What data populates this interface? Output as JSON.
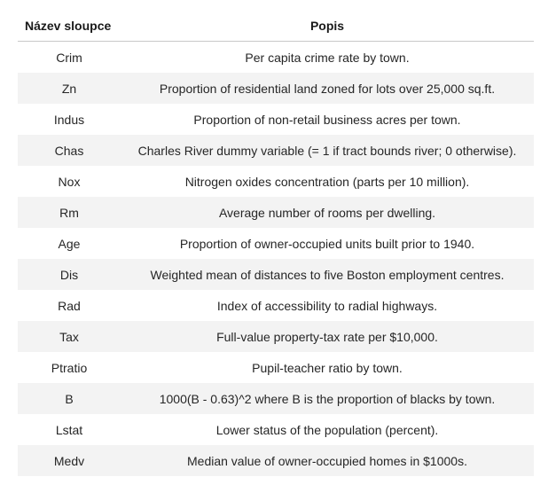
{
  "table": {
    "headers": {
      "name": "Název sloupce",
      "description": "Popis"
    },
    "rows": [
      {
        "name": "Crim",
        "description": "Per capita crime rate by town."
      },
      {
        "name": "Zn",
        "description": "Proportion of residential land zoned for lots over 25,000 sq.ft."
      },
      {
        "name": "Indus",
        "description": "Proportion of non-retail business acres per town."
      },
      {
        "name": "Chas",
        "description": "Charles River dummy variable (= 1 if tract bounds river; 0 otherwise)."
      },
      {
        "name": "Nox",
        "description": "Nitrogen oxides concentration (parts per 10 million)."
      },
      {
        "name": "Rm",
        "description": "Average number of rooms per dwelling."
      },
      {
        "name": "Age",
        "description": "Proportion of owner-occupied units built prior to 1940."
      },
      {
        "name": "Dis",
        "description": "Weighted mean of distances to five Boston employment centres."
      },
      {
        "name": "Rad",
        "description": "Index of accessibility to radial highways."
      },
      {
        "name": "Tax",
        "description": "Full-value property-tax rate per $10,000."
      },
      {
        "name": "Ptratio",
        "description": "Pupil-teacher ratio by town."
      },
      {
        "name": "B",
        "description": "1000(B - 0.63)^2 where B is the proportion of blacks by town."
      },
      {
        "name": "Lstat",
        "description": "Lower status of the population (percent)."
      },
      {
        "name": "Medv",
        "description": "Median value of owner-occupied homes in $1000s."
      }
    ]
  }
}
